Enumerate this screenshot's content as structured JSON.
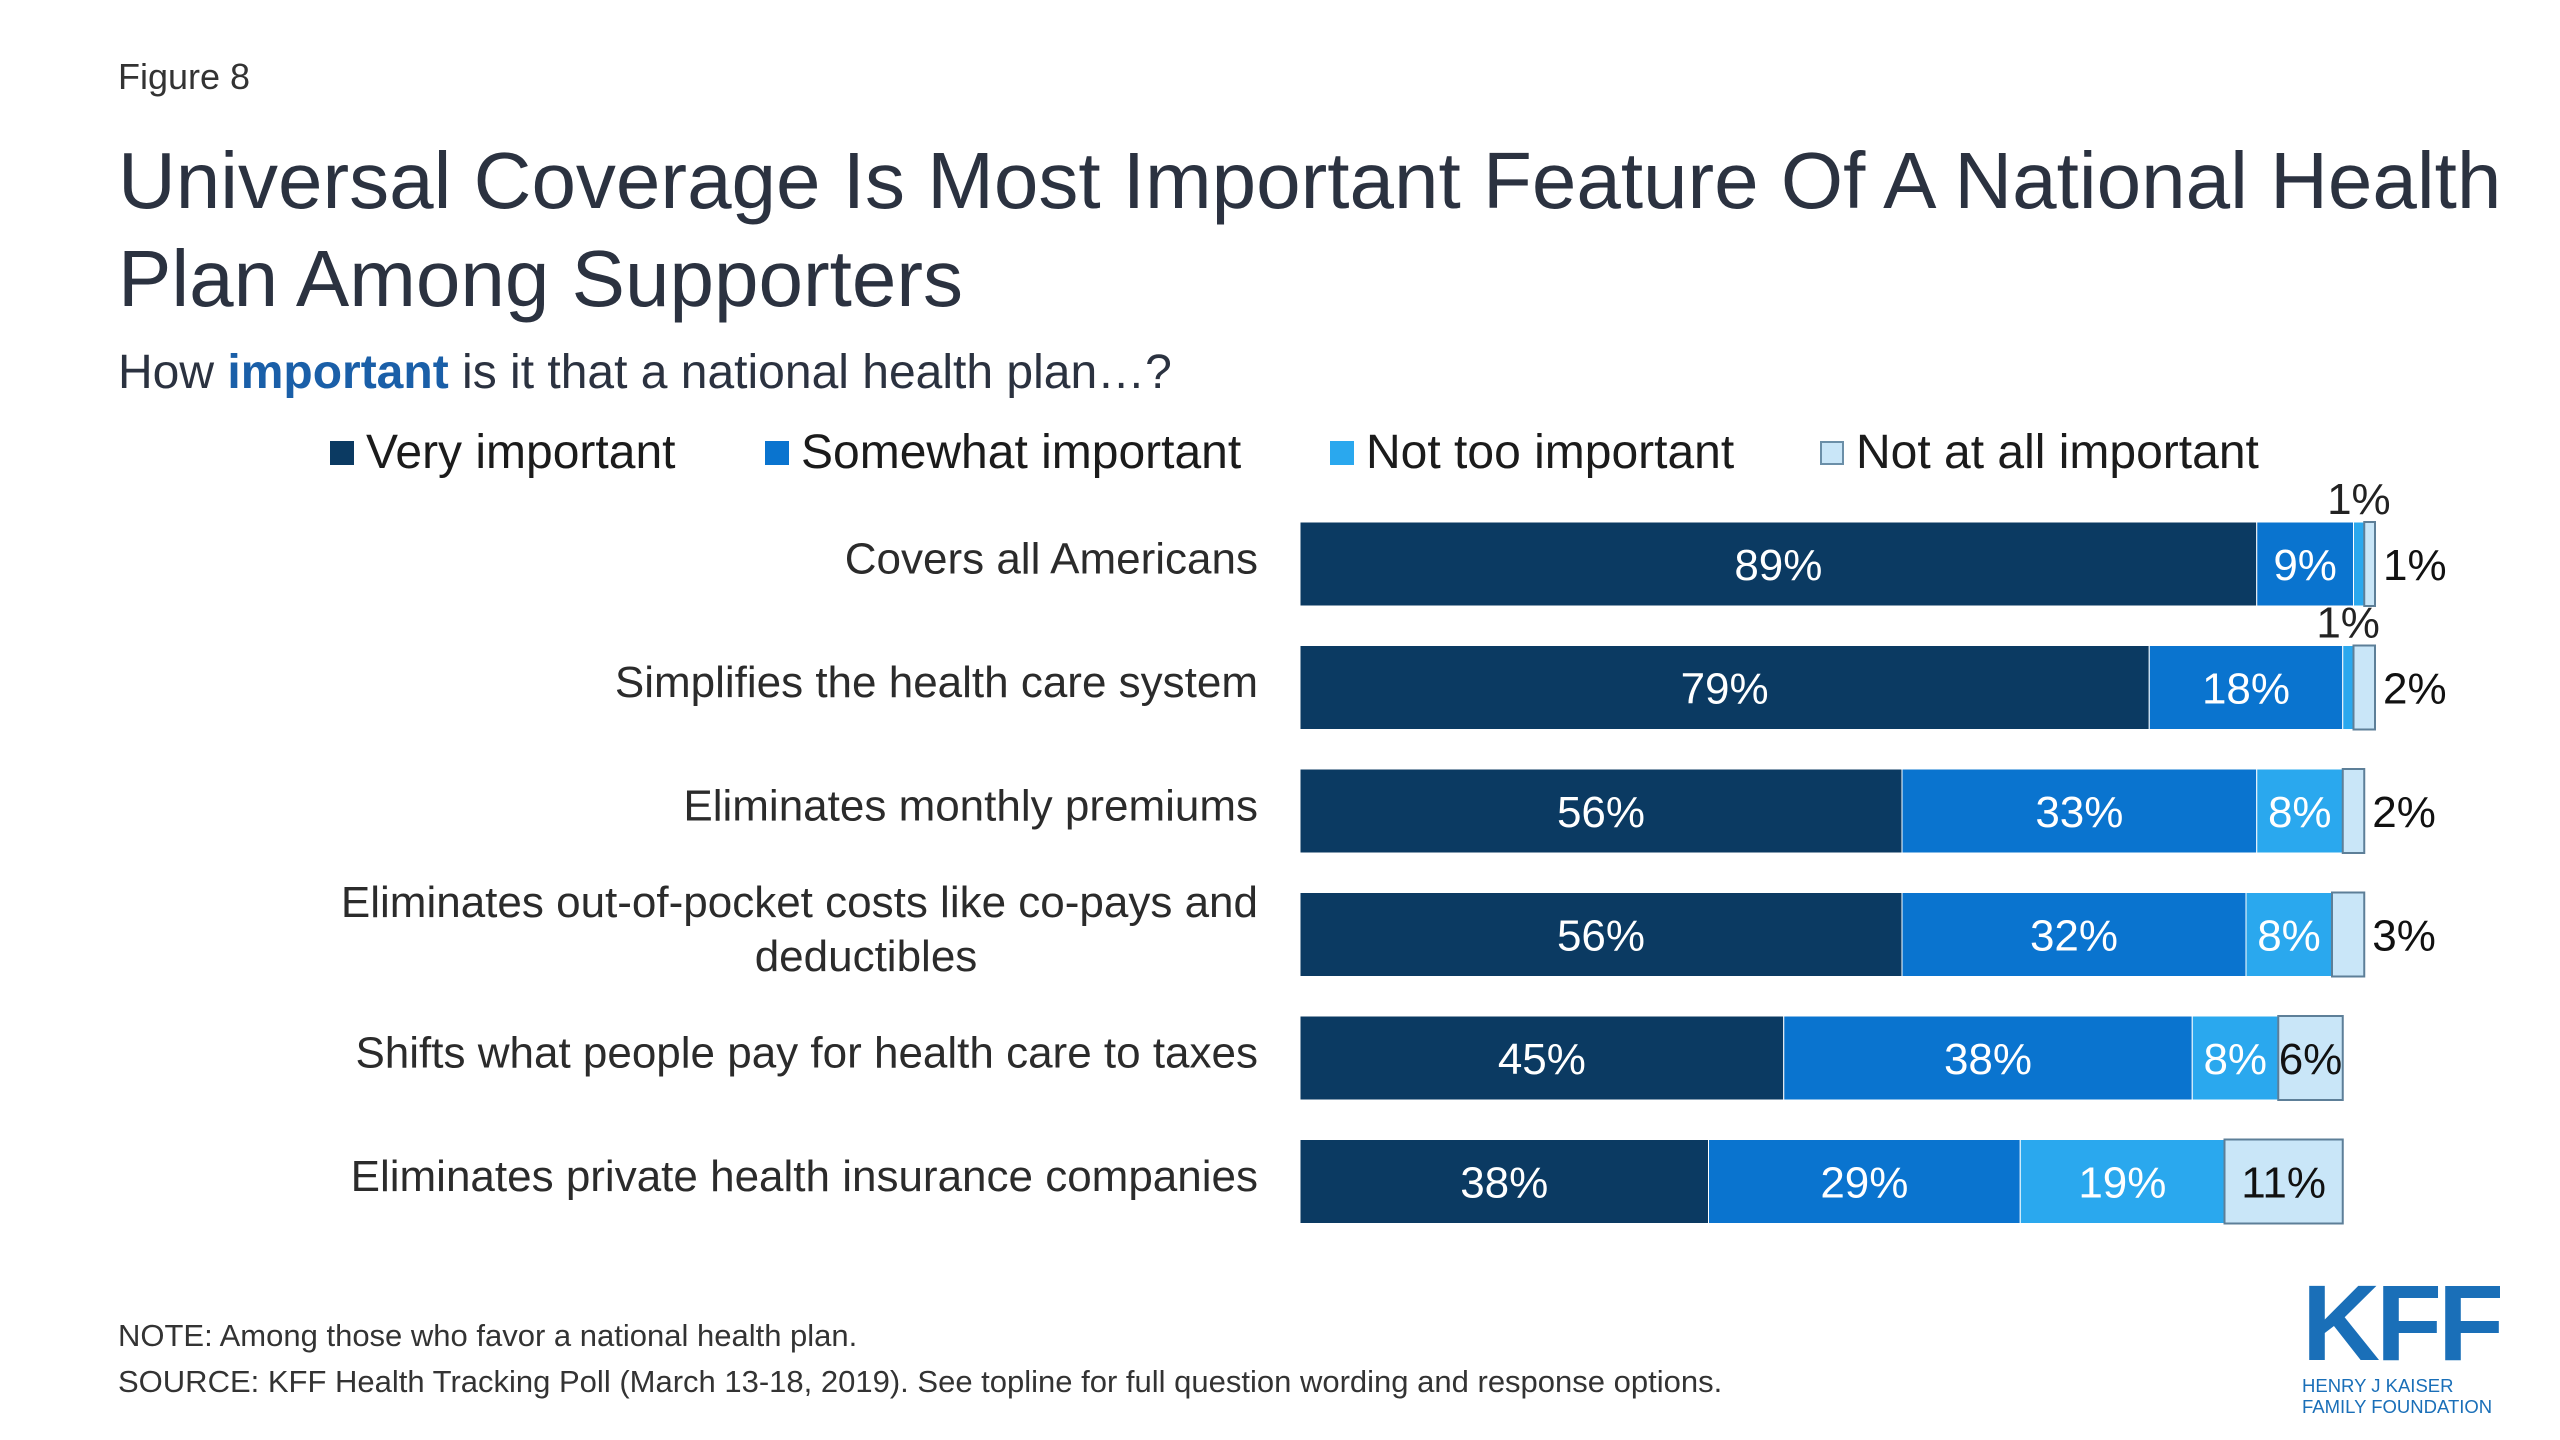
{
  "figure_label": "Figure 8",
  "title": "Universal Coverage Is Most Important Feature Of A National Health Plan Among Supporters",
  "subtitle": {
    "prefix": "How ",
    "highlight": "important",
    "suffix": " is it that a national health plan…?"
  },
  "legend": [
    {
      "label": "Very important",
      "color": "#0b3a62"
    },
    {
      "label": "Somewhat important",
      "color": "#0a74cf"
    },
    {
      "label": "Not too important",
      "color": "#2aa8ee"
    },
    {
      "label": "Not at all important",
      "color": "#c9e6f8"
    }
  ],
  "chart_data": {
    "type": "bar",
    "orientation": "horizontal",
    "stacked": true,
    "categories": [
      "Covers all Americans",
      "Simplifies the health care system",
      "Eliminates monthly premiums",
      "Eliminates out-of-pocket costs like co-pays and deductibles",
      "Shifts what people pay for health care to taxes",
      "Eliminates private health insurance companies"
    ],
    "series": [
      {
        "name": "Very important",
        "color": "#0b3a62",
        "values": [
          89,
          79,
          56,
          56,
          45,
          38
        ],
        "labels": [
          "89%",
          "79%",
          "56%",
          "56%",
          "45%",
          "38%"
        ]
      },
      {
        "name": "Somewhat important",
        "color": "#0a74cf",
        "values": [
          9,
          18,
          33,
          32,
          38,
          29
        ],
        "labels": [
          "9%",
          "18%",
          "33%",
          "32%",
          "38%",
          "29%"
        ]
      },
      {
        "name": "Not too important",
        "color": "#2aa8ee",
        "values": [
          1,
          1,
          8,
          8,
          8,
          19
        ],
        "labels": [
          "1%",
          "1%",
          "8%",
          "8%",
          "8%",
          "19%"
        ]
      },
      {
        "name": "Not at all important",
        "color": "#c9e6f8",
        "values": [
          1,
          2,
          2,
          3,
          6,
          11
        ],
        "labels": [
          "1%",
          "2%",
          "2%",
          "3%",
          "6%",
          "11%"
        ]
      }
    ],
    "xlim": [
      0,
      100
    ],
    "grid": false,
    "legend_position": "top"
  },
  "note": "NOTE: Among those who favor a national health plan.",
  "source": "SOURCE: KFF Health Tracking Poll (March 13-18, 2019). See topline for full question wording and response options.",
  "logo": {
    "mark": "KFF",
    "line1": "HENRY J KAISER",
    "line2": "FAMILY FOUNDATION",
    "color": "#1a6fb8"
  }
}
